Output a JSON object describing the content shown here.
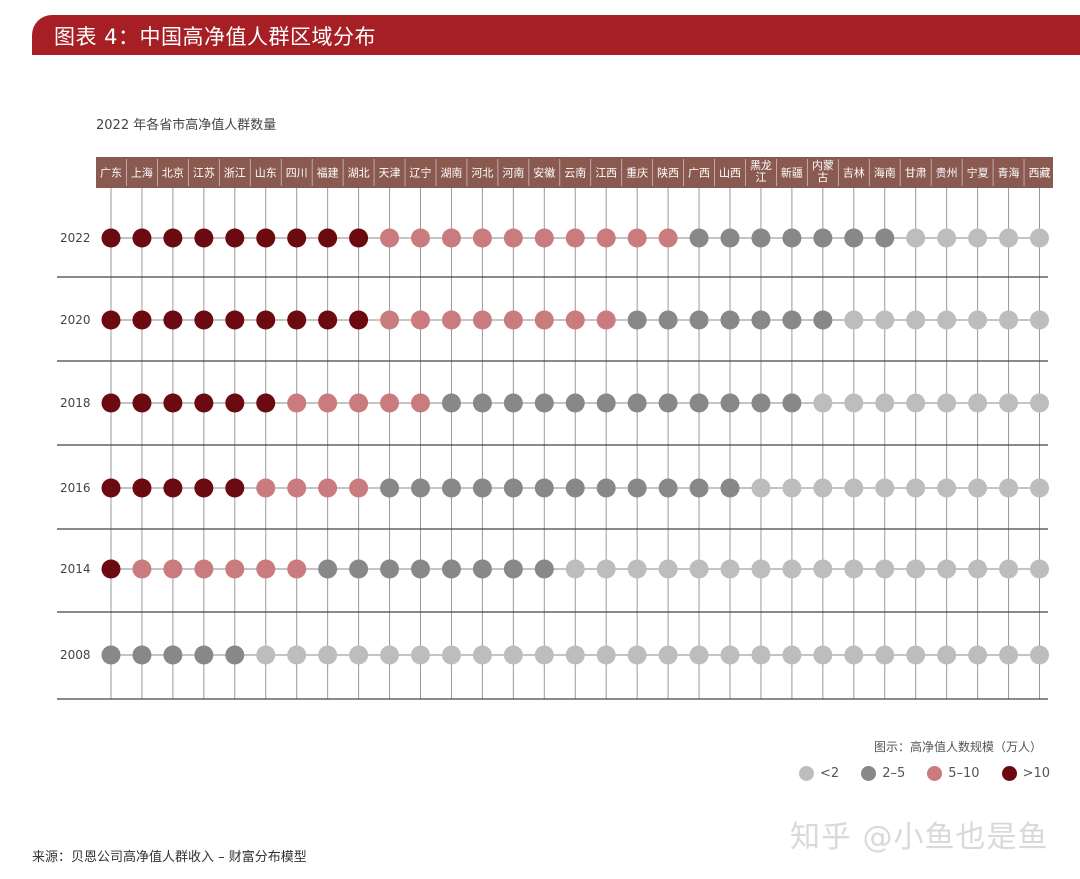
{
  "header": {
    "title": "图表 4：中国高净值人群区域分布"
  },
  "chart_data": {
    "type": "dot-matrix",
    "title": "2022 年各省市高净值人群数量",
    "provinces": [
      "广东",
      "上海",
      "北京",
      "江苏",
      "浙江",
      "山东",
      "四川",
      "福建",
      "湖北",
      "天津",
      "辽宁",
      "湖南",
      "河北",
      "河南",
      "安徽",
      "云南",
      "江西",
      "重庆",
      "陕西",
      "广西",
      "山西",
      "黑龙\n江",
      "新疆",
      "内蒙\n古",
      "吉林",
      "海南",
      "甘肃",
      "贵州",
      "宁夏",
      "青海",
      "西藏"
    ],
    "category_colors": {
      "<2": "#bdbdbd",
      "2-5": "#888888",
      "5-10": "#c97b7d",
      ">10": "#6b0a10"
    },
    "rows": [
      {
        "year": "2022",
        "levels": [
          ">10",
          ">10",
          ">10",
          ">10",
          ">10",
          ">10",
          ">10",
          ">10",
          ">10",
          "5-10",
          "5-10",
          "5-10",
          "5-10",
          "5-10",
          "5-10",
          "5-10",
          "5-10",
          "5-10",
          "5-10",
          "2-5",
          "2-5",
          "2-5",
          "2-5",
          "2-5",
          "2-5",
          "2-5",
          "<2",
          "<2",
          "<2",
          "<2",
          "<2"
        ]
      },
      {
        "year": "2020",
        "levels": [
          ">10",
          ">10",
          ">10",
          ">10",
          ">10",
          ">10",
          ">10",
          ">10",
          ">10",
          "5-10",
          "5-10",
          "5-10",
          "5-10",
          "5-10",
          "5-10",
          "5-10",
          "5-10",
          "2-5",
          "2-5",
          "2-5",
          "2-5",
          "2-5",
          "2-5",
          "2-5",
          "<2",
          "<2",
          "<2",
          "<2",
          "<2",
          "<2",
          "<2"
        ]
      },
      {
        "year": "2018",
        "levels": [
          ">10",
          ">10",
          ">10",
          ">10",
          ">10",
          ">10",
          "5-10",
          "5-10",
          "5-10",
          "5-10",
          "5-10",
          "2-5",
          "2-5",
          "2-5",
          "2-5",
          "2-5",
          "2-5",
          "2-5",
          "2-5",
          "2-5",
          "2-5",
          "2-5",
          "2-5",
          "<2",
          "<2",
          "<2",
          "<2",
          "<2",
          "<2",
          "<2",
          "<2"
        ]
      },
      {
        "year": "2016",
        "levels": [
          ">10",
          ">10",
          ">10",
          ">10",
          ">10",
          "5-10",
          "5-10",
          "5-10",
          "5-10",
          "2-5",
          "2-5",
          "2-5",
          "2-5",
          "2-5",
          "2-5",
          "2-5",
          "2-5",
          "2-5",
          "2-5",
          "2-5",
          "2-5",
          "<2",
          "<2",
          "<2",
          "<2",
          "<2",
          "<2",
          "<2",
          "<2",
          "<2",
          "<2"
        ]
      },
      {
        "year": "2014",
        "levels": [
          ">10",
          "5-10",
          "5-10",
          "5-10",
          "5-10",
          "5-10",
          "5-10",
          "2-5",
          "2-5",
          "2-5",
          "2-5",
          "2-5",
          "2-5",
          "2-5",
          "2-5",
          "<2",
          "<2",
          "<2",
          "<2",
          "<2",
          "<2",
          "<2",
          "<2",
          "<2",
          "<2",
          "<2",
          "<2",
          "<2",
          "<2",
          "<2",
          "<2"
        ]
      },
      {
        "year": "2008",
        "levels": [
          "2-5",
          "2-5",
          "2-5",
          "2-5",
          "2-5",
          "<2",
          "<2",
          "<2",
          "<2",
          "<2",
          "<2",
          "<2",
          "<2",
          "<2",
          "<2",
          "<2",
          "<2",
          "<2",
          "<2",
          "<2",
          "<2",
          "<2",
          "<2",
          "<2",
          "<2",
          "<2",
          "<2",
          "<2",
          "<2",
          "<2",
          "<2"
        ]
      }
    ],
    "legend": {
      "title": "图示：高净值人数规模（万人）",
      "items": [
        {
          "label": "<2",
          "key": "<2"
        },
        {
          "label": "2–5",
          "key": "2-5"
        },
        {
          "label": "5–10",
          "key": "5-10"
        },
        {
          "label": ">10",
          "key": ">10"
        }
      ]
    },
    "header_bg": "#8a5a50"
  },
  "footer": {
    "source": "来源：贝恩公司高净值人群收入 – 财富分布模型",
    "watermark": "知乎 @小鱼也是鱼"
  }
}
